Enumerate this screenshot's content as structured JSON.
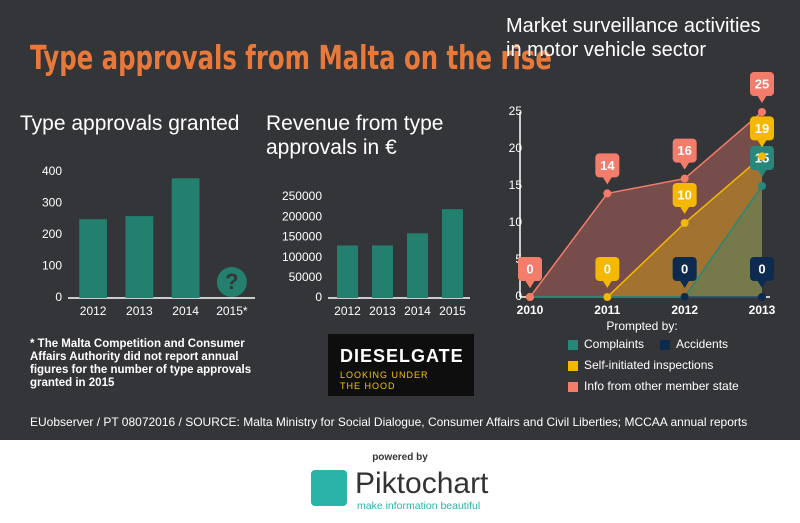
{
  "title": "Type approvals from Malta on the rise",
  "chart_data": [
    {
      "type": "bar",
      "title": "Type approvals granted",
      "categories": [
        "2012",
        "2013",
        "2014",
        "2015*"
      ],
      "values": [
        250,
        260,
        380,
        null
      ],
      "annotation": "?",
      "color": "#23806f",
      "ylim": [
        0,
        400
      ],
      "yticks": [
        0,
        100,
        200,
        300,
        400
      ]
    },
    {
      "type": "bar",
      "title": "Revenue from type approvals in €",
      "categories": [
        "2012",
        "2013",
        "2014",
        "2015"
      ],
      "values": [
        130000,
        130000,
        160000,
        220000
      ],
      "color": "#23806f",
      "ylim": [
        0,
        250000
      ],
      "yticks": [
        0,
        50000,
        100000,
        150000,
        200000,
        250000
      ]
    },
    {
      "type": "line",
      "title": "Market surveillance activities in motor vehicle sector",
      "categories": [
        "2010",
        "2011",
        "2012",
        "2013"
      ],
      "legend_title": "Prompted by:",
      "series": [
        {
          "name": "Complaints",
          "color": "#26877a",
          "values": [
            0,
            0,
            0,
            15
          ]
        },
        {
          "name": "Accidents",
          "color": "#0c2b4f",
          "values": [
            0,
            0,
            0,
            0
          ]
        },
        {
          "name": "Self-initiated inspections",
          "color": "#f5b800",
          "values": [
            0,
            0,
            10,
            19
          ]
        },
        {
          "name": "Info from other member state",
          "color": "#f47c6a",
          "values": [
            0,
            14,
            16,
            25
          ]
        }
      ],
      "ylim": [
        0,
        25
      ],
      "yticks": [
        0,
        5,
        10,
        15,
        20,
        25
      ]
    }
  ],
  "footnote": "* The Malta Competition and Consumer Affairs Authority did not report annual figures for the number of type approvals granted in 2015",
  "badge": {
    "title": "DIESELGATE",
    "subtitle": "LOOKING UNDER THE HOOD"
  },
  "source": "EUobserver / PT 08072016 / SOURCE: Malta Ministry for Social Dialogue, Consumer Affairs and Civil Liberties; MCCAA annual reports",
  "footer": {
    "powered": "powered by",
    "brand": "Piktochart",
    "tagline": "make information beautiful"
  }
}
